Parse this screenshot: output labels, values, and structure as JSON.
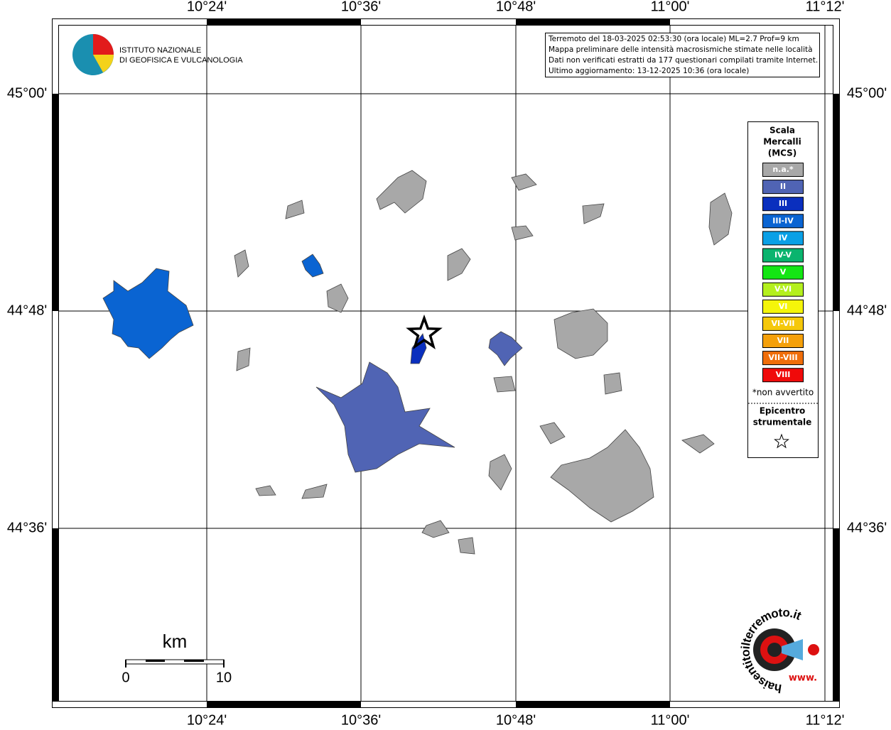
{
  "map": {
    "x_labels": [
      "10°24'",
      "10°36'",
      "10°48'",
      "11°00'",
      "11°12'"
    ],
    "y_labels": [
      "45°00'",
      "44°48'",
      "44°36'"
    ]
  },
  "logo": {
    "lines": [
      "ISTITUTO NAZIONALE",
      "DI GEOFISICA E VULCANOLOGIA"
    ]
  },
  "info": {
    "lines": [
      "Terremoto del 18-03-2025 02:53:30 (ora locale) ML=2.7 Prof=9 km",
      "Mappa preliminare delle intensità macrosismiche stimate nelle località",
      "Dati non verificati estratti da 177 questionari compilati tramite Internet.",
      "Ultimo aggiornamento: 13-12-2025 10:36 (ora locale)"
    ]
  },
  "legend": {
    "title": [
      "Scala",
      "Mercalli",
      "(MCS)"
    ],
    "items": [
      {
        "label": "n.a.*",
        "color": "#a8a8a8"
      },
      {
        "label": "II",
        "color": "#5064b4"
      },
      {
        "label": "III",
        "color": "#0a2fbe"
      },
      {
        "label": "III-IV",
        "color": "#0a64d2"
      },
      {
        "label": "IV",
        "color": "#0aa0e6"
      },
      {
        "label": "IV-V",
        "color": "#0ab46e"
      },
      {
        "label": "V",
        "color": "#14e614"
      },
      {
        "label": "V-VI",
        "color": "#b4f01e"
      },
      {
        "label": "VI",
        "color": "#f5f50a"
      },
      {
        "label": "VI-VII",
        "color": "#f5c80a"
      },
      {
        "label": "VII",
        "color": "#f5a00a"
      },
      {
        "label": "VII-VIII",
        "color": "#f06e0a"
      },
      {
        "label": "VIII",
        "color": "#f00a0a"
      }
    ],
    "note": "*non avvertito",
    "epicenter": [
      "Epicentro",
      "strumentale"
    ]
  },
  "scale": {
    "unit": "km",
    "ticks": [
      "0",
      "10"
    ]
  },
  "brand": {
    "text": "haisentitoilterremoto.it",
    "www": "www."
  }
}
